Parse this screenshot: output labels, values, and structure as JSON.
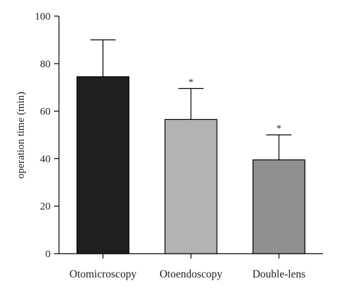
{
  "chart_data": {
    "type": "bar",
    "categories": [
      "Otomicroscopy",
      "Otoendoscopy",
      "Double-lens"
    ],
    "values": [
      74.5,
      56.5,
      39.5
    ],
    "errors": [
      15.5,
      13.0,
      10.5
    ],
    "significance": [
      "",
      "*",
      "*"
    ],
    "bar_colors": [
      "#202020",
      "#b3b3b3",
      "#8f8f8f"
    ],
    "title": "",
    "xlabel": "",
    "ylabel": "operation time (min)",
    "ylim": [
      0,
      100
    ],
    "yticks": [
      0,
      20,
      40,
      60,
      80,
      100
    ],
    "grid": false,
    "legend": "none"
  }
}
